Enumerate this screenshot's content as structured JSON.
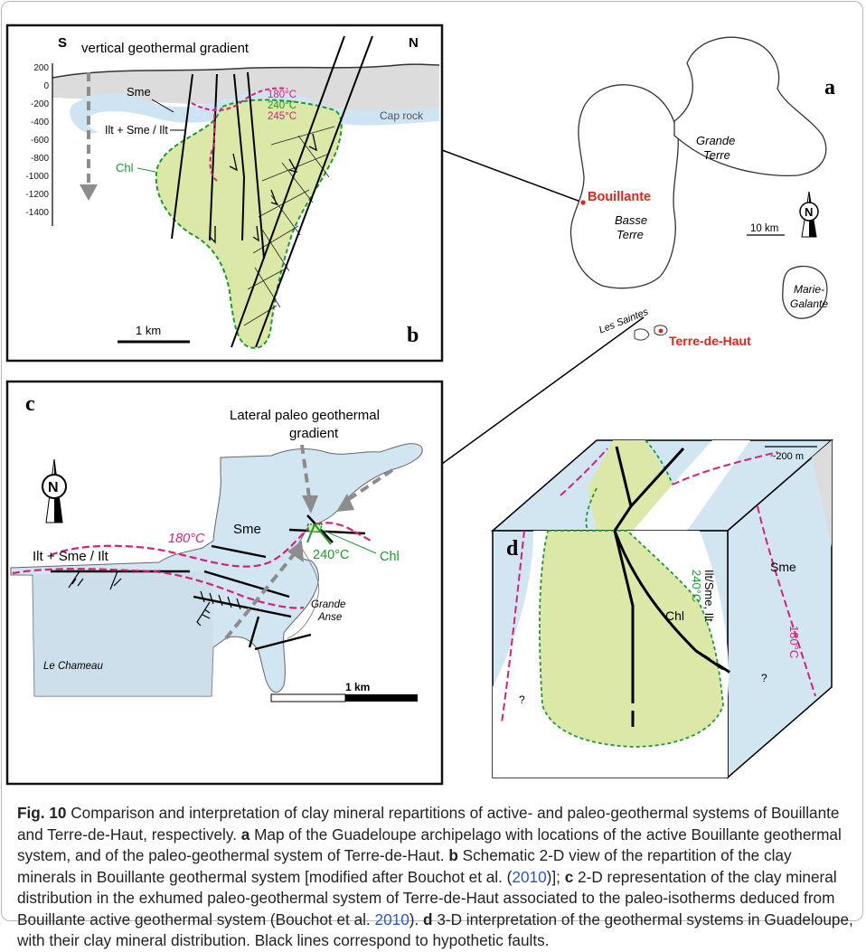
{
  "panel_b": {
    "letter": "b",
    "title": "vertical geothermal gradient",
    "south": "S",
    "north": "N",
    "depth_ticks": [
      "200",
      "0",
      "-200",
      "-400",
      "-600",
      "-800",
      "-1000",
      "-1200",
      "-1400"
    ],
    "sme": "Sme",
    "illite": "Ilt + Sme / Ilt",
    "chlorite": "Chl",
    "cap_rock": "Cap rock",
    "iso_180": "180°C",
    "iso_240": "240°C",
    "iso_245": "245°C",
    "scale": "1 km"
  },
  "panel_a": {
    "letter": "a",
    "grande_terre_1": "Grande",
    "grande_terre_2": "Terre",
    "basse_terre_1": "Basse",
    "basse_terre_2": "Terre",
    "bouillante": "Bouillante",
    "scale": "10 km",
    "north": "N",
    "marie_galante_1": "Marie-",
    "marie_galante_2": "Galante",
    "les_saintes": "Les Saintes",
    "terre_de_haut": "Terre-de-Haut",
    "highlight_color": "#e2231a"
  },
  "panel_c": {
    "letter": "c",
    "title_1": "Lateral paleo geothermal",
    "title_2": "gradient",
    "north": "N",
    "sme": "Sme",
    "illite": "Ilt + Sme / Ilt",
    "iso_180": "180°C",
    "iso_240": "240°C",
    "chlorite": "Chl",
    "grande_anse_1": "Grande",
    "grande_anse_2": "Anse",
    "le_chameau": "Le Chameau",
    "scale": "1 km"
  },
  "panel_d": {
    "letter": "d",
    "scale": "~200 m",
    "chlorite": "Chl",
    "iso_240": "240°C",
    "illite": "Ilt/Sme, Ilt",
    "sme": "Sme",
    "iso_180": "180°C",
    "unknown_left": "?",
    "unknown_right": "?"
  },
  "colors": {
    "chlorite_fill": "#dbe8a8",
    "smectite_fill": "#d2e6f2",
    "isotherm_180": "#d6207a",
    "isotherm_240": "#1c9a2e"
  },
  "caption": {
    "fig_label": "Fig. 10",
    "text_1": "  Comparison and interpretation of clay mineral repartitions of active- and paleo-geothermal systems of Bouillante and Terre-de-Haut, respectively. ",
    "a": "a",
    "text_a": " Map of the Guadeloupe archipelago with locations of the active Bouillante geothermal system, and of the paleo-geothermal system of Terre-de-Haut. ",
    "b": "b",
    "text_b1": " Schematic 2-D view of the repartition of the clay minerals in Bouillante geothermal system [modified after Bouchot et al. (",
    "cite_1": "2010",
    "text_b2": ")]; ",
    "c": "c",
    "text_c1": " 2-D representation of the clay mineral distribution in the exhumed paleo-geothermal system of Terre-de-Haut associated to the paleo-isotherms deduced from Bouillante active geothermal system (Bouchot et al. ",
    "cite_2": "2010",
    "text_c2": "). ",
    "d": "d",
    "text_d": " 3-D interpretation of the geothermal systems in Guadeloupe, with their clay mineral distribution. Black lines correspond to hypothetic faults."
  }
}
